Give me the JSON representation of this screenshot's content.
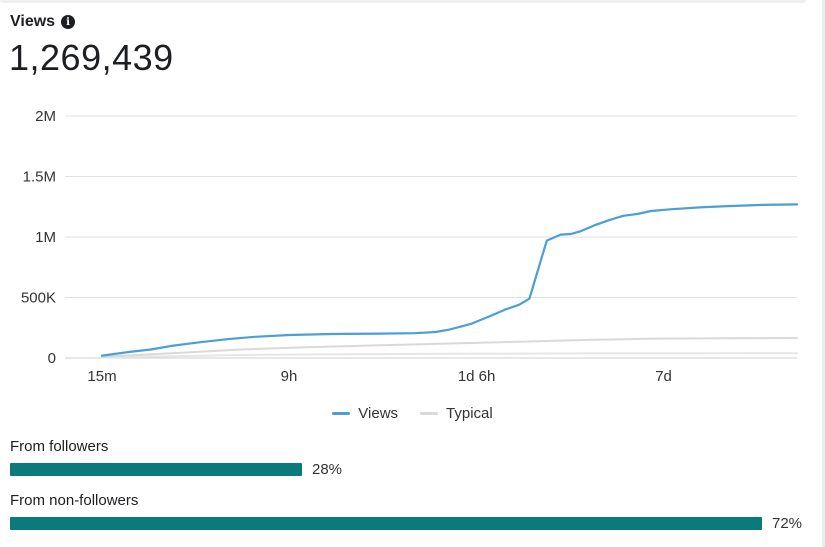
{
  "header": {
    "title": "Views",
    "info_icon": "info-icon",
    "total": "1,269,439"
  },
  "colors": {
    "views": "#4a9fd5",
    "typical": "#d9d9d9",
    "bar": "#0b7a7d",
    "grid": "#e1e1e1"
  },
  "chart_data": {
    "type": "line",
    "x_ticks": [
      "15m",
      "9h",
      "1d 6h",
      "7d"
    ],
    "y_ticks": [
      "0",
      "500K",
      "1M",
      "1.5M",
      "2M"
    ],
    "ylim": [
      0,
      2000000
    ],
    "legend_position": "bottom",
    "grid": true,
    "series": [
      {
        "name": "Views",
        "color": "#4a9fd5",
        "points": [
          [
            0,
            20000
          ],
          [
            0.04,
            50000
          ],
          [
            0.07,
            70000
          ],
          [
            0.1,
            100000
          ],
          [
            0.14,
            130000
          ],
          [
            0.18,
            155000
          ],
          [
            0.22,
            175000
          ],
          [
            0.27,
            190000
          ],
          [
            0.33,
            198000
          ],
          [
            0.4,
            202000
          ],
          [
            0.45,
            205000
          ],
          [
            0.48,
            215000
          ],
          [
            0.5,
            235000
          ],
          [
            0.53,
            280000
          ],
          [
            0.56,
            350000
          ],
          [
            0.58,
            400000
          ],
          [
            0.6,
            440000
          ],
          [
            0.615,
            490000
          ],
          [
            0.64,
            970000
          ],
          [
            0.66,
            1020000
          ],
          [
            0.675,
            1025000
          ],
          [
            0.69,
            1050000
          ],
          [
            0.71,
            1100000
          ],
          [
            0.73,
            1140000
          ],
          [
            0.75,
            1175000
          ],
          [
            0.77,
            1190000
          ],
          [
            0.79,
            1215000
          ],
          [
            0.82,
            1230000
          ],
          [
            0.86,
            1245000
          ],
          [
            0.9,
            1255000
          ],
          [
            0.95,
            1265000
          ],
          [
            1.0,
            1269439
          ]
        ]
      },
      {
        "name": "Typical",
        "color": "#d9d9d9",
        "points": [
          [
            0,
            10000
          ],
          [
            0.1,
            40000
          ],
          [
            0.2,
            70000
          ],
          [
            0.3,
            90000
          ],
          [
            0.4,
            105000
          ],
          [
            0.5,
            120000
          ],
          [
            0.6,
            135000
          ],
          [
            0.7,
            150000
          ],
          [
            0.8,
            160000
          ],
          [
            0.9,
            163000
          ],
          [
            1.0,
            165000
          ]
        ]
      },
      {
        "name": "",
        "color": "#e6e6e6",
        "points": [
          [
            0,
            5000
          ],
          [
            0.1,
            15000
          ],
          [
            0.2,
            25000
          ],
          [
            0.3,
            30000
          ],
          [
            0.5,
            35000
          ],
          [
            0.7,
            38000
          ],
          [
            1.0,
            40000
          ]
        ]
      }
    ]
  },
  "legend": {
    "views_label": "Views",
    "typical_label": "Typical"
  },
  "breakdown": {
    "followers": {
      "label": "From followers",
      "percent_text": "28%",
      "value": 0.28
    },
    "non_followers": {
      "label": "From non-followers",
      "percent_text": "72%",
      "value": 0.72
    }
  }
}
